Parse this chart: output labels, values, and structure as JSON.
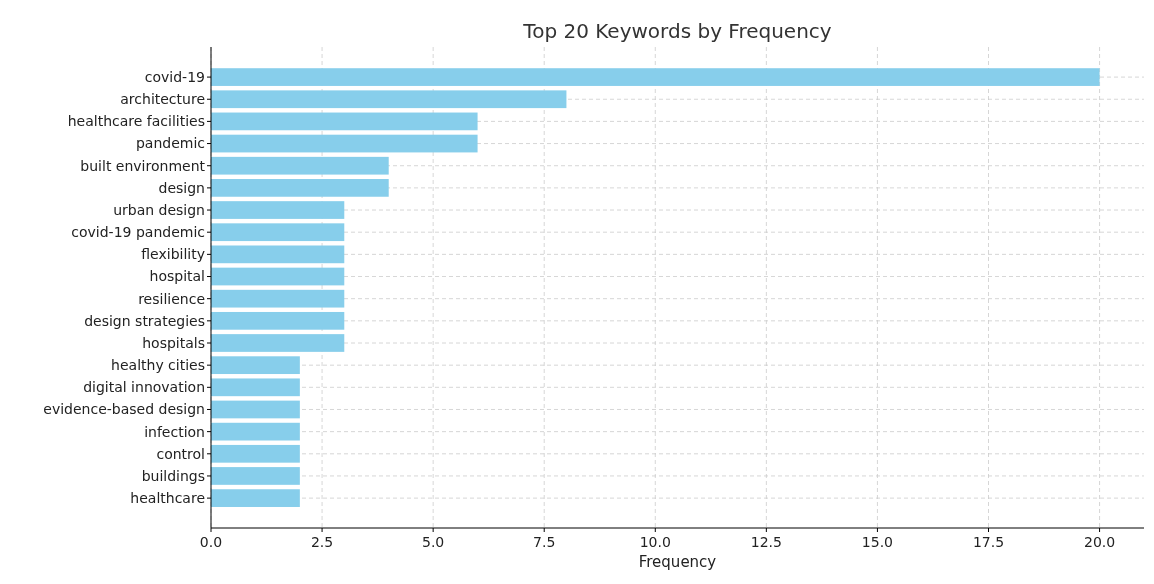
{
  "chart_data": {
    "type": "bar",
    "orientation": "horizontal",
    "title": "Top 20 Keywords by Frequency",
    "xlabel": "Frequency",
    "categories": [
      "covid-19",
      "architecture",
      "healthcare facilities",
      "pandemic",
      "built environment",
      "design",
      "urban design",
      "covid-19 pandemic",
      "flexibility",
      "hospital",
      "resilience",
      "design strategies",
      "hospitals",
      "healthy cities",
      "digital innovation",
      "evidence-based design",
      "infection",
      "control",
      "buildings",
      "healthcare"
    ],
    "values": [
      20,
      8,
      6,
      6,
      4,
      4,
      3,
      3,
      3,
      3,
      3,
      3,
      3,
      2,
      2,
      2,
      2,
      2,
      2,
      2
    ],
    "color": "#87ceeb",
    "xlim": [
      0,
      21
    ],
    "xticks": [
      {
        "value": 0,
        "label": "0.0"
      },
      {
        "value": 2.5,
        "label": "2.5"
      },
      {
        "value": 5,
        "label": "5.0"
      },
      {
        "value": 7.5,
        "label": "7.5"
      },
      {
        "value": 10,
        "label": "10.0"
      },
      {
        "value": 12.5,
        "label": "12.5"
      },
      {
        "value": 15,
        "label": "15.0"
      },
      {
        "value": 17.5,
        "label": "17.5"
      },
      {
        "value": 20,
        "label": "20.0"
      }
    ],
    "grid": true
  }
}
